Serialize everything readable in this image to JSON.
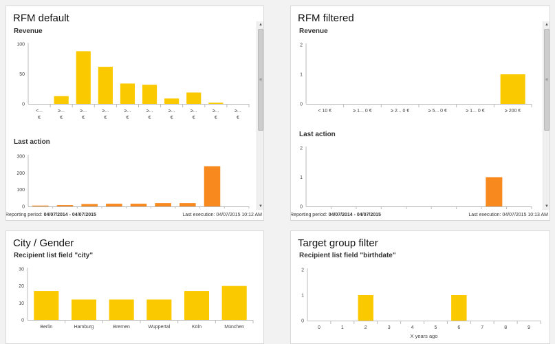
{
  "panels": {
    "rfm_default": {
      "title": "RFM default",
      "footer_prefix": "Reporting period: ",
      "footer_period": "04/07/2014 - 04/07/2015",
      "footer_right": "Last execution: 04/07/2015 10:12 AM"
    },
    "rfm_filtered": {
      "title": "RFM filtered",
      "footer_prefix": "Reporting period: ",
      "footer_period": "04/07/2014 - 04/07/2015",
      "footer_right": "Last execution: 04/07/2015 10:13 AM"
    },
    "city_gender": {
      "title": "City / Gender"
    },
    "target_group": {
      "title": "Target group filter"
    }
  },
  "colors": {
    "yellow": "#fbc900",
    "orange": "#f7891f",
    "axis": "#bbbbbb"
  },
  "chart_data": [
    {
      "id": "rfm-default-revenue",
      "type": "bar",
      "title": "Revenue",
      "categories": [
        [
          "<...",
          "€"
        ],
        [
          "≥...",
          "€"
        ],
        [
          "≥...",
          "€"
        ],
        [
          "≥...",
          "€"
        ],
        [
          "≥...",
          "€"
        ],
        [
          "≥...",
          "€"
        ],
        [
          "≥...",
          "€"
        ],
        [
          "≥...",
          "€"
        ],
        [
          "≥...",
          "€"
        ],
        [
          "≥...",
          "€"
        ]
      ],
      "values": [
        0,
        13,
        88,
        62,
        34,
        32,
        9,
        19,
        2,
        0
      ],
      "ylim": [
        0,
        100
      ],
      "yticks": [
        0,
        50,
        100
      ],
      "color": "yellow"
    },
    {
      "id": "rfm-default-last-action",
      "type": "bar",
      "title": "Last action",
      "categories": [
        "",
        "",
        "",
        "",
        "",
        "",
        "",
        "",
        ""
      ],
      "values": [
        5,
        8,
        14,
        16,
        16,
        20,
        20,
        240,
        0
      ],
      "ylim": [
        0,
        300
      ],
      "yticks": [
        0,
        100,
        200,
        300
      ],
      "color": "orange"
    },
    {
      "id": "rfm-filtered-revenue",
      "type": "bar",
      "title": "Revenue",
      "categories": [
        "< 10 €",
        "≥ 1... 0 €",
        "≥ 2... 0 €",
        "≥ 5... 0 €",
        "≥ 1... 0 €",
        "≥ 200 €"
      ],
      "values": [
        0,
        0,
        0,
        0,
        0,
        1
      ],
      "ylim": [
        0,
        2
      ],
      "yticks": [
        0,
        1,
        2
      ],
      "color": "yellow"
    },
    {
      "id": "rfm-filtered-last-action",
      "type": "bar",
      "title": "Last action",
      "categories": [
        "",
        "",
        "",
        "",
        "",
        "",
        "",
        "",
        ""
      ],
      "values": [
        0,
        0,
        0,
        0,
        0,
        0,
        0,
        1,
        0
      ],
      "ylim": [
        0,
        2
      ],
      "yticks": [
        0,
        1,
        2
      ],
      "color": "orange"
    },
    {
      "id": "city-gender",
      "type": "bar",
      "title": "Recipient list field \"city\"",
      "categories": [
        "Berlin",
        "Hamburg",
        "Bremen",
        "Wuppertal",
        "Köln",
        "München"
      ],
      "values": [
        17,
        12,
        12,
        12,
        17,
        20
      ],
      "ylim": [
        0,
        30
      ],
      "yticks": [
        0,
        10,
        20,
        30
      ],
      "color": "yellow"
    },
    {
      "id": "target-group-birthdate",
      "type": "bar",
      "title": "Recipient list field \"birthdate\"",
      "xlabel": "X years ago",
      "categories": [
        "0",
        "1",
        "2",
        "3",
        "4",
        "5",
        "6",
        "7",
        "8",
        "9"
      ],
      "values": [
        0,
        0,
        1,
        0,
        0,
        0,
        1,
        0,
        0,
        0
      ],
      "ylim": [
        0,
        2
      ],
      "yticks": [
        0,
        1,
        2
      ],
      "color": "yellow"
    }
  ]
}
